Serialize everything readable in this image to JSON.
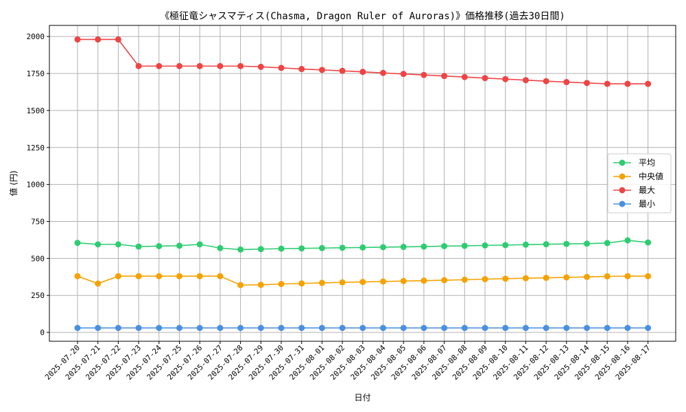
{
  "chart_data": {
    "type": "line",
    "title": "《極征竜シャスマティス(Chasma, Dragon Ruler of Auroras)》価格推移(過去30日間)",
    "xlabel": "日付",
    "ylabel": "値 (円)",
    "ylim": [
      -60,
      2075
    ],
    "yticks": [
      0,
      250,
      500,
      750,
      1000,
      1250,
      1500,
      1750,
      2000
    ],
    "grid": true,
    "legend_position": "right",
    "categories": [
      "2025-07-20",
      "2025-07-21",
      "2025-07-22",
      "2025-07-23",
      "2025-07-24",
      "2025-07-25",
      "2025-07-26",
      "2025-07-27",
      "2025-07-28",
      "2025-07-29",
      "2025-07-30",
      "2025-07-31",
      "2025-08-01",
      "2025-08-02",
      "2025-08-03",
      "2025-08-04",
      "2025-08-05",
      "2025-08-06",
      "2025-08-07",
      "2025-08-08",
      "2025-08-09",
      "2025-08-10",
      "2025-08-11",
      "2025-08-12",
      "2025-08-13",
      "2025-08-14",
      "2025-08-15",
      "2025-08-16",
      "2025-08-17"
    ],
    "series": [
      {
        "name": "平均",
        "color": "#2ecc71",
        "values": [
          605,
          595,
          595,
          580,
          583,
          586,
          595,
          570,
          560,
          563,
          566,
          568,
          570,
          572,
          574,
          576,
          578,
          580,
          583,
          585,
          588,
          590,
          593,
          596,
          598,
          600,
          604,
          622,
          608
        ]
      },
      {
        "name": "中央値",
        "color": "#f5a200",
        "values": [
          380,
          330,
          380,
          380,
          380,
          380,
          380,
          380,
          320,
          322,
          327,
          331,
          335,
          338,
          341,
          344,
          347,
          350,
          353,
          356,
          360,
          363,
          366,
          369,
          372,
          375,
          379,
          380,
          380
        ]
      },
      {
        "name": "最大",
        "color": "#ee4444",
        "values": [
          1980,
          1980,
          1980,
          1800,
          1800,
          1800,
          1800,
          1800,
          1800,
          1795,
          1788,
          1780,
          1774,
          1768,
          1761,
          1754,
          1747,
          1740,
          1733,
          1726,
          1719,
          1712,
          1705,
          1698,
          1692,
          1686,
          1680,
          1680,
          1680
        ]
      },
      {
        "name": "最小",
        "color": "#4a90e2",
        "values": [
          30,
          30,
          30,
          30,
          30,
          30,
          30,
          30,
          30,
          30,
          30,
          30,
          30,
          30,
          30,
          30,
          30,
          30,
          30,
          30,
          30,
          30,
          30,
          30,
          30,
          30,
          30,
          30,
          30
        ]
      }
    ]
  }
}
